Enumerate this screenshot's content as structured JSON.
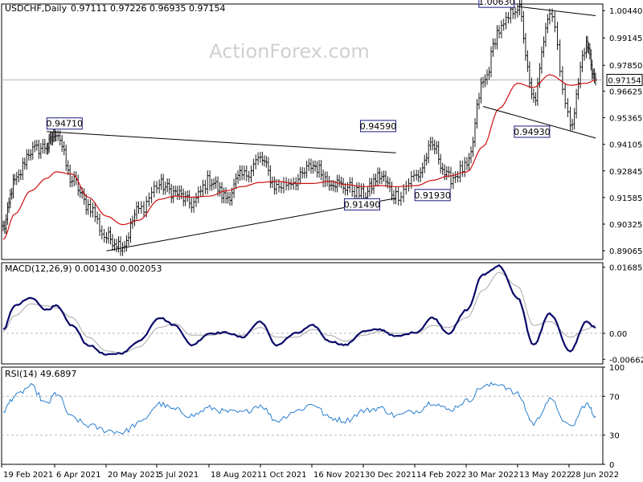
{
  "header": {
    "symbol": "USDCHF,Daily",
    "ohlc": "0.97111 0.97226 0.96935 0.97154"
  },
  "watermark": "ActionForex.com",
  "colors": {
    "candle": "#1a1a1a",
    "ma": "#d01010",
    "trendline": "#000000",
    "macd_main": "#0a0a6a",
    "macd_signal": "#a8a8a8",
    "rsi": "#2a7fd0",
    "grid": "#b8b8b8",
    "label_border": "#1a1a80",
    "watermark": "#d0d0d0"
  },
  "chart_data": [
    {
      "type": "line",
      "title": "USDCHF,Daily",
      "subtitle": "0.97111 0.97226 0.96935 0.97154",
      "description_series": [
        "price",
        "moving average"
      ],
      "ylim": [
        0.8865,
        1.0075
      ],
      "yticks": [
        "1.00440",
        "0.99145",
        "0.97850",
        "0.96625",
        "0.95365",
        "0.94105",
        "0.92845",
        "0.91585",
        "0.90325",
        "0.89065"
      ],
      "ytick_values": [
        1.0044,
        0.99145,
        0.9785,
        0.96625,
        0.95365,
        0.94105,
        0.92845,
        0.91585,
        0.90325,
        0.89065
      ],
      "last_price_label": "0.97154",
      "last_price": 0.97154,
      "xticks": [
        "19 Feb 2021",
        "6 Apr 2021",
        "20 May 2021",
        "5 Jul 2021",
        "18 Aug 2021",
        "1 Oct 2021",
        "16 Nov 2021",
        "30 Dec 2021",
        "14 Feb 2022",
        "30 Mar 2022",
        "13 May 2022",
        "28 Jun 2022"
      ],
      "x": [
        "2021-02-19",
        "2021-03-01",
        "2021-03-15",
        "2021-03-29",
        "2021-04-06",
        "2021-04-20",
        "2021-05-04",
        "2021-05-20",
        "2021-06-03",
        "2021-06-17",
        "2021-07-05",
        "2021-07-19",
        "2021-08-02",
        "2021-08-18",
        "2021-09-01",
        "2021-09-15",
        "2021-10-01",
        "2021-10-15",
        "2021-11-01",
        "2021-11-16",
        "2021-11-30",
        "2021-12-14",
        "2021-12-30",
        "2022-01-13",
        "2022-01-27",
        "2022-02-14",
        "2022-02-28",
        "2022-03-14",
        "2022-03-30",
        "2022-04-13",
        "2022-04-27",
        "2022-05-13",
        "2022-05-27",
        "2022-06-10",
        "2022-06-28",
        "2022-07-12",
        "2022-07-20"
      ],
      "series": [
        {
          "name": "",
          "values": [
            0.9015,
            0.923,
            0.938,
            0.94,
            0.9471,
            0.924,
            0.912,
            0.897,
            0.8935,
            0.91,
            0.922,
            0.918,
            0.913,
            0.924,
            0.916,
            0.926,
            0.934,
            0.921,
            0.924,
            0.931,
            0.924,
            0.921,
            0.917,
            0.926,
            0.917,
            0.926,
            0.94,
            0.925,
            0.93,
            0.97,
            0.995,
            1.0063,
            0.962,
            1.0044,
            0.952,
            0.988,
            0.9715
          ]
        },
        {
          "name": "",
          "values": [
            0.896,
            0.908,
            0.919,
            0.925,
            0.928,
            0.927,
            0.916,
            0.907,
            0.903,
            0.905,
            0.915,
            0.9165,
            0.916,
            0.9165,
            0.919,
            0.921,
            0.923,
            0.9235,
            0.9225,
            0.9225,
            0.9235,
            0.922,
            0.921,
            0.9215,
            0.921,
            0.9215,
            0.924,
            0.926,
            0.928,
            0.94,
            0.958,
            0.97,
            0.968,
            0.974,
            0.969,
            0.97,
            0.9715
          ]
        }
      ],
      "annotations": [
        {
          "label": "0.94710",
          "value": 0.9471,
          "date": "2021-03-29"
        },
        {
          "label": "0.94590",
          "value": 0.9459,
          "date": "2022-01-27"
        },
        {
          "label": "1.00630",
          "value": 1.0063,
          "date": "2022-05-13"
        },
        {
          "label": "0.94930",
          "value": 0.9493,
          "date": "2022-06-10"
        },
        {
          "label": "0.91490",
          "value": 0.9149,
          "date": "2022-01-13"
        },
        {
          "label": "0.91930",
          "value": 0.9193,
          "date": "2022-02-14"
        }
      ],
      "trendlines": [
        {
          "from": [
            "2021-03-29",
            0.9471
          ],
          "to": [
            "2022-01-27",
            0.937
          ]
        },
        {
          "from": [
            "2021-05-20",
            0.8906
          ],
          "to": [
            "2022-01-27",
            0.9155
          ]
        },
        {
          "from": [
            "2022-05-13",
            1.0063
          ],
          "to": [
            "2022-07-20",
            1.002
          ]
        },
        {
          "from": [
            "2022-04-13",
            0.959
          ],
          "to": [
            "2022-07-20",
            0.944
          ]
        }
      ]
    },
    {
      "type": "line",
      "title": "MACD(12,26,9) 0.001430 0.002053",
      "ylim": [
        -0.0078,
        0.018
      ],
      "yticks": [
        "0.016856",
        "0.00",
        "-0.006629"
      ],
      "ytick_values": [
        0.016856,
        0.0,
        -0.006629
      ],
      "value_label": "0.00",
      "series": [
        {
          "name": "",
          "values": [
            0.001,
            0.007,
            0.009,
            0.006,
            0.007,
            0.002,
            -0.003,
            -0.0055,
            -0.005,
            -0.002,
            0.004,
            0.002,
            -0.003,
            0.0,
            0.0002,
            -0.001,
            0.003,
            -0.003,
            0.0,
            0.002,
            -0.002,
            -0.003,
            0.0005,
            0.001,
            -0.0008,
            0.0003,
            0.004,
            0.0,
            0.006,
            0.015,
            0.0172,
            0.009,
            -0.003,
            0.005,
            -0.0045,
            0.003,
            0.0014
          ]
        },
        {
          "name": "",
          "values": [
            0.0005,
            0.0045,
            0.0075,
            0.007,
            0.0065,
            0.004,
            -0.001,
            -0.0045,
            -0.005,
            -0.0035,
            0.0015,
            0.0025,
            -0.0005,
            -0.0005,
            0.0,
            -0.0005,
            0.0015,
            -0.001,
            -0.001,
            0.001,
            -0.0005,
            -0.002,
            -0.0005,
            0.0005,
            0.0,
            0.0,
            0.002,
            0.0015,
            0.004,
            0.011,
            0.0155,
            0.012,
            0.002,
            0.003,
            -0.001,
            0.001,
            0.0021
          ]
        }
      ]
    },
    {
      "type": "line",
      "title": "RSI(14) 49.6897",
      "ylim": [
        0,
        100
      ],
      "yticks": [
        "100",
        "70",
        "30",
        "0"
      ],
      "ytick_values": [
        100,
        70,
        30,
        0
      ],
      "series": [
        {
          "name": "",
          "values": [
            55,
            70,
            80,
            62,
            73,
            48,
            40,
            35,
            33,
            42,
            62,
            56,
            50,
            58,
            54,
            53,
            61,
            45,
            55,
            62,
            48,
            45,
            55,
            58,
            50,
            55,
            64,
            56,
            65,
            80,
            83,
            72,
            42,
            66,
            38,
            62,
            49.7
          ]
        }
      ]
    }
  ]
}
